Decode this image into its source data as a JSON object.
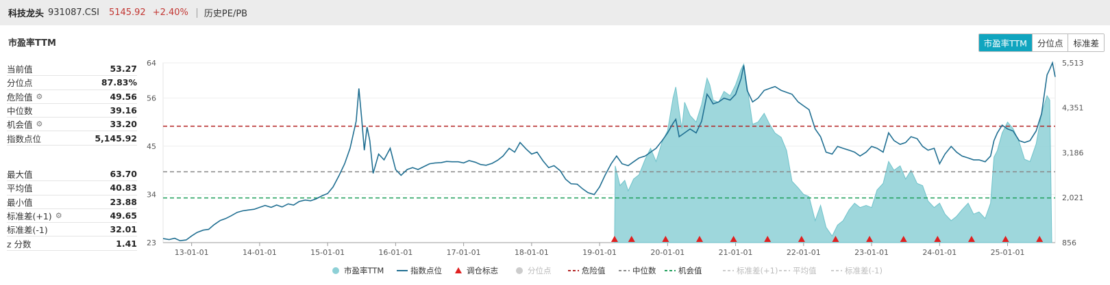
{
  "header": {
    "name": "科技龙头",
    "code": "931087.CSI",
    "price": "5145.92",
    "change": "+2.40%",
    "link": "历史PE/PB"
  },
  "section_title": "市盈率TTM",
  "tabs": [
    {
      "label": "市盈率TTM",
      "active": true
    },
    {
      "label": "分位点",
      "active": false
    },
    {
      "label": "标准差",
      "active": false
    }
  ],
  "stats_top": [
    {
      "label": "当前值",
      "value": "53.27",
      "gear": false
    },
    {
      "label": "分位点",
      "value": "87.83%",
      "gear": false
    },
    {
      "label": "危险值",
      "value": "49.56",
      "gear": true
    },
    {
      "label": "中位数",
      "value": "39.16",
      "gear": false
    },
    {
      "label": "机会值",
      "value": "33.20",
      "gear": true
    },
    {
      "label": "指数点位",
      "value": "5,145.92",
      "gear": false
    }
  ],
  "stats_bottom": [
    {
      "label": "最大值",
      "value": "63.70",
      "gear": false
    },
    {
      "label": "平均值",
      "value": "40.83",
      "gear": false
    },
    {
      "label": "最小值",
      "value": "23.88",
      "gear": false
    },
    {
      "label": "标准差(+1)",
      "value": "49.65",
      "gear": true
    },
    {
      "label": "标准差(-1)",
      "value": "32.01",
      "gear": false
    },
    {
      "label": "z 分数",
      "value": "1.41",
      "gear": false
    }
  ],
  "chart_data": {
    "type": "line",
    "x_start": 2012.58,
    "x_end": 2025.7,
    "x_ticks": [
      "13-01-01",
      "14-01-01",
      "15-01-01",
      "16-01-01",
      "17-01-01",
      "18-01-01",
      "19-01-01",
      "20-01-01",
      "21-01-01",
      "22-01-01",
      "23-01-01",
      "24-01-01",
      "25-01-01"
    ],
    "left_axis": {
      "ticks": [
        23,
        34,
        45,
        56,
        64
      ],
      "min": 23,
      "max": 64
    },
    "right_axis": {
      "ticks": [
        "856",
        "2,021",
        "3,186",
        "4,351",
        "5,513"
      ],
      "min": 856,
      "max": 5513
    },
    "horizontal_lines": {
      "danger": 49.56,
      "median": 39.16,
      "opportunity": 33.2
    },
    "series": [
      {
        "name": "市盈率TTM",
        "axis": "left",
        "kind": "area",
        "color": "#8dd0d6",
        "points": [
          [
            2019.22,
            23
          ],
          [
            2019.23,
            40.5
          ],
          [
            2019.3,
            36.0
          ],
          [
            2019.37,
            37.2
          ],
          [
            2019.42,
            34.8
          ],
          [
            2019.5,
            37.5
          ],
          [
            2019.58,
            38.5
          ],
          [
            2019.67,
            42.0
          ],
          [
            2019.75,
            44.5
          ],
          [
            2019.83,
            41.5
          ],
          [
            2019.92,
            46.0
          ],
          [
            2020.0,
            48.5
          ],
          [
            2020.08,
            56.0
          ],
          [
            2020.12,
            58.5
          ],
          [
            2020.17,
            53.0
          ],
          [
            2020.21,
            49.0
          ],
          [
            2020.25,
            55.0
          ],
          [
            2020.33,
            52.0
          ],
          [
            2020.42,
            50.5
          ],
          [
            2020.5,
            54.5
          ],
          [
            2020.58,
            60.5
          ],
          [
            2020.62,
            59.0
          ],
          [
            2020.67,
            55.5
          ],
          [
            2020.75,
            55.0
          ],
          [
            2020.83,
            57.5
          ],
          [
            2020.92,
            56.5
          ],
          [
            2021.0,
            59.0
          ],
          [
            2021.08,
            62.5
          ],
          [
            2021.12,
            63.7
          ],
          [
            2021.17,
            58.5
          ],
          [
            2021.25,
            50.0
          ],
          [
            2021.33,
            50.5
          ],
          [
            2021.42,
            52.5
          ],
          [
            2021.5,
            50.0
          ],
          [
            2021.58,
            48.0
          ],
          [
            2021.67,
            47.0
          ],
          [
            2021.75,
            44.0
          ],
          [
            2021.83,
            37.0
          ],
          [
            2021.92,
            35.5
          ],
          [
            2022.0,
            34.0
          ],
          [
            2022.08,
            33.5
          ],
          [
            2022.17,
            28.0
          ],
          [
            2022.25,
            31.5
          ],
          [
            2022.33,
            26.5
          ],
          [
            2022.42,
            24.5
          ],
          [
            2022.5,
            27.0
          ],
          [
            2022.58,
            28.0
          ],
          [
            2022.67,
            30.5
          ],
          [
            2022.75,
            32.0
          ],
          [
            2022.83,
            31.0
          ],
          [
            2022.92,
            31.5
          ],
          [
            2023.0,
            31.0
          ],
          [
            2023.08,
            35.0
          ],
          [
            2023.17,
            36.5
          ],
          [
            2023.25,
            41.5
          ],
          [
            2023.33,
            39.5
          ],
          [
            2023.42,
            40.5
          ],
          [
            2023.5,
            37.5
          ],
          [
            2023.58,
            39.5
          ],
          [
            2023.67,
            36.5
          ],
          [
            2023.75,
            36.0
          ],
          [
            2023.83,
            32.5
          ],
          [
            2023.92,
            31.0
          ],
          [
            2024.0,
            32.0
          ],
          [
            2024.08,
            29.5
          ],
          [
            2024.17,
            28.0
          ],
          [
            2024.25,
            29.0
          ],
          [
            2024.33,
            30.5
          ],
          [
            2024.42,
            32.0
          ],
          [
            2024.5,
            29.5
          ],
          [
            2024.58,
            30.0
          ],
          [
            2024.67,
            28.5
          ],
          [
            2024.75,
            32.0
          ],
          [
            2024.8,
            42.5
          ],
          [
            2024.85,
            44.0
          ],
          [
            2024.92,
            48.0
          ],
          [
            2025.0,
            50.5
          ],
          [
            2025.08,
            49.0
          ],
          [
            2025.17,
            46.0
          ],
          [
            2025.25,
            42.0
          ],
          [
            2025.33,
            41.5
          ],
          [
            2025.42,
            45.5
          ],
          [
            2025.5,
            52.5
          ],
          [
            2025.58,
            56.5
          ],
          [
            2025.62,
            55.5
          ],
          [
            2025.65,
            23
          ]
        ]
      },
      {
        "name": "指数点位",
        "axis": "right",
        "kind": "line",
        "color": "#1f6e91",
        "points": [
          [
            2012.58,
            960
          ],
          [
            2012.67,
            935
          ],
          [
            2012.75,
            970
          ],
          [
            2012.83,
            905
          ],
          [
            2012.92,
            925
          ],
          [
            2013.0,
            1030
          ],
          [
            2013.08,
            1120
          ],
          [
            2013.17,
            1180
          ],
          [
            2013.25,
            1200
          ],
          [
            2013.33,
            1320
          ],
          [
            2013.42,
            1430
          ],
          [
            2013.5,
            1480
          ],
          [
            2013.58,
            1550
          ],
          [
            2013.67,
            1640
          ],
          [
            2013.75,
            1680
          ],
          [
            2013.83,
            1700
          ],
          [
            2013.92,
            1720
          ],
          [
            2014.0,
            1770
          ],
          [
            2014.08,
            1820
          ],
          [
            2014.17,
            1770
          ],
          [
            2014.25,
            1830
          ],
          [
            2014.33,
            1780
          ],
          [
            2014.42,
            1860
          ],
          [
            2014.5,
            1830
          ],
          [
            2014.58,
            1920
          ],
          [
            2014.67,
            1960
          ],
          [
            2014.75,
            1940
          ],
          [
            2014.83,
            1990
          ],
          [
            2014.92,
            2070
          ],
          [
            2015.0,
            2130
          ],
          [
            2015.08,
            2300
          ],
          [
            2015.17,
            2600
          ],
          [
            2015.25,
            2900
          ],
          [
            2015.33,
            3300
          ],
          [
            2015.42,
            4000
          ],
          [
            2015.46,
            4850
          ],
          [
            2015.5,
            4080
          ],
          [
            2015.54,
            3250
          ],
          [
            2015.58,
            3850
          ],
          [
            2015.62,
            3500
          ],
          [
            2015.67,
            2650
          ],
          [
            2015.75,
            3150
          ],
          [
            2015.83,
            3000
          ],
          [
            2015.92,
            3300
          ],
          [
            2016.0,
            2750
          ],
          [
            2016.08,
            2600
          ],
          [
            2016.17,
            2750
          ],
          [
            2016.25,
            2800
          ],
          [
            2016.33,
            2750
          ],
          [
            2016.42,
            2830
          ],
          [
            2016.5,
            2900
          ],
          [
            2016.58,
            2920
          ],
          [
            2016.67,
            2930
          ],
          [
            2016.75,
            2960
          ],
          [
            2016.83,
            2950
          ],
          [
            2016.92,
            2950
          ],
          [
            2017.0,
            2920
          ],
          [
            2017.08,
            2980
          ],
          [
            2017.17,
            2940
          ],
          [
            2017.25,
            2880
          ],
          [
            2017.33,
            2860
          ],
          [
            2017.42,
            2910
          ],
          [
            2017.5,
            2990
          ],
          [
            2017.58,
            3100
          ],
          [
            2017.67,
            3300
          ],
          [
            2017.75,
            3200
          ],
          [
            2017.83,
            3450
          ],
          [
            2017.92,
            3280
          ],
          [
            2018.0,
            3150
          ],
          [
            2018.08,
            3200
          ],
          [
            2018.17,
            2970
          ],
          [
            2018.25,
            2800
          ],
          [
            2018.33,
            2850
          ],
          [
            2018.42,
            2720
          ],
          [
            2018.5,
            2500
          ],
          [
            2018.58,
            2380
          ],
          [
            2018.67,
            2370
          ],
          [
            2018.75,
            2250
          ],
          [
            2018.83,
            2150
          ],
          [
            2018.92,
            2100
          ],
          [
            2019.0,
            2300
          ],
          [
            2019.08,
            2600
          ],
          [
            2019.17,
            2900
          ],
          [
            2019.25,
            3100
          ],
          [
            2019.33,
            2900
          ],
          [
            2019.42,
            2850
          ],
          [
            2019.5,
            2950
          ],
          [
            2019.58,
            3050
          ],
          [
            2019.67,
            3100
          ],
          [
            2019.75,
            3200
          ],
          [
            2019.83,
            3300
          ],
          [
            2019.92,
            3500
          ],
          [
            2020.0,
            3700
          ],
          [
            2020.08,
            3950
          ],
          [
            2020.12,
            4050
          ],
          [
            2020.17,
            3600
          ],
          [
            2020.25,
            3700
          ],
          [
            2020.33,
            3800
          ],
          [
            2020.42,
            3700
          ],
          [
            2020.5,
            4000
          ],
          [
            2020.58,
            4700
          ],
          [
            2020.62,
            4600
          ],
          [
            2020.67,
            4450
          ],
          [
            2020.75,
            4500
          ],
          [
            2020.83,
            4600
          ],
          [
            2020.92,
            4550
          ],
          [
            2021.0,
            4700
          ],
          [
            2021.08,
            5100
          ],
          [
            2021.12,
            5450
          ],
          [
            2021.17,
            4800
          ],
          [
            2021.25,
            4500
          ],
          [
            2021.33,
            4600
          ],
          [
            2021.42,
            4800
          ],
          [
            2021.5,
            4850
          ],
          [
            2021.58,
            4900
          ],
          [
            2021.67,
            4800
          ],
          [
            2021.75,
            4750
          ],
          [
            2021.83,
            4700
          ],
          [
            2021.92,
            4500
          ],
          [
            2022.0,
            4400
          ],
          [
            2022.08,
            4300
          ],
          [
            2022.17,
            3800
          ],
          [
            2022.25,
            3600
          ],
          [
            2022.33,
            3200
          ],
          [
            2022.42,
            3150
          ],
          [
            2022.5,
            3350
          ],
          [
            2022.58,
            3300
          ],
          [
            2022.67,
            3250
          ],
          [
            2022.75,
            3200
          ],
          [
            2022.83,
            3100
          ],
          [
            2022.92,
            3200
          ],
          [
            2023.0,
            3350
          ],
          [
            2023.08,
            3300
          ],
          [
            2023.17,
            3200
          ],
          [
            2023.25,
            3700
          ],
          [
            2023.33,
            3500
          ],
          [
            2023.42,
            3400
          ],
          [
            2023.5,
            3450
          ],
          [
            2023.58,
            3600
          ],
          [
            2023.67,
            3550
          ],
          [
            2023.75,
            3350
          ],
          [
            2023.83,
            3250
          ],
          [
            2023.92,
            3300
          ],
          [
            2024.0,
            2900
          ],
          [
            2024.08,
            3150
          ],
          [
            2024.17,
            3350
          ],
          [
            2024.25,
            3200
          ],
          [
            2024.33,
            3100
          ],
          [
            2024.42,
            3050
          ],
          [
            2024.5,
            3000
          ],
          [
            2024.58,
            3000
          ],
          [
            2024.67,
            2950
          ],
          [
            2024.75,
            3100
          ],
          [
            2024.8,
            3500
          ],
          [
            2024.85,
            3700
          ],
          [
            2024.92,
            3900
          ],
          [
            2025.0,
            3800
          ],
          [
            2025.08,
            3750
          ],
          [
            2025.17,
            3500
          ],
          [
            2025.25,
            3450
          ],
          [
            2025.33,
            3500
          ],
          [
            2025.42,
            3750
          ],
          [
            2025.5,
            4200
          ],
          [
            2025.58,
            5200
          ],
          [
            2025.62,
            5350
          ],
          [
            2025.66,
            5513
          ],
          [
            2025.7,
            5150
          ]
        ]
      }
    ],
    "markers": [
      2019.22,
      2019.47,
      2019.97,
      2020.47,
      2020.97,
      2021.47,
      2021.97,
      2022.47,
      2022.97,
      2023.47,
      2023.97,
      2024.47,
      2024.97,
      2025.47
    ],
    "legend": [
      {
        "label": "市盈率TTM",
        "symbol": "dot",
        "color": "#8dd0d6",
        "active": true
      },
      {
        "label": "指数点位",
        "symbol": "line",
        "color": "#1f6e91",
        "active": true
      },
      {
        "label": "调仓标志",
        "symbol": "triangle",
        "color": "#e02020",
        "active": true
      },
      {
        "label": "分位点",
        "symbol": "dot",
        "color": "#cccccc",
        "active": false
      },
      {
        "label": "危险值",
        "symbol": "dash",
        "color": "#b22222",
        "active": true
      },
      {
        "label": "中位数",
        "symbol": "dash",
        "color": "#888888",
        "active": true
      },
      {
        "label": "机会值",
        "symbol": "dash",
        "color": "#1e9e5a",
        "active": true
      },
      {
        "label": "标准差(+1)",
        "symbol": "dash",
        "color": "#cccccc",
        "active": false
      },
      {
        "label": "平均值",
        "symbol": "dash",
        "color": "#cccccc",
        "active": false
      },
      {
        "label": "标准差(-1)",
        "symbol": "dash",
        "color": "#cccccc",
        "active": false
      }
    ]
  }
}
